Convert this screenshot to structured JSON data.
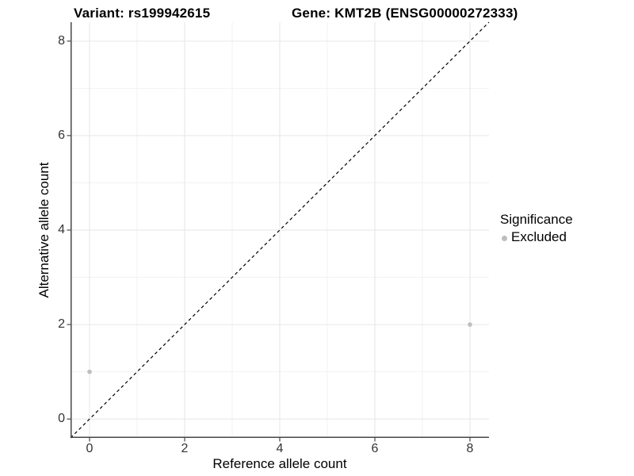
{
  "titles": {
    "variant": "Variant: rs199942615",
    "gene": "Gene: KMT2B (ENSG00000272333)"
  },
  "chart_data": {
    "type": "scatter",
    "xlabel": "Reference allele count",
    "ylabel": "Alternative allele count",
    "xlim": [
      -0.4,
      8.4
    ],
    "ylim": [
      -0.4,
      8.4
    ],
    "x_ticks": {
      "major": [
        0,
        2,
        4,
        6,
        8
      ],
      "minor": [
        1,
        3,
        5,
        7
      ]
    },
    "y_ticks": {
      "major": [
        0,
        2,
        4,
        6,
        8
      ],
      "minor": [
        1,
        3,
        5,
        7
      ]
    },
    "grid": "major+minor",
    "series": [
      {
        "name": "Excluded",
        "color": "#bebebe",
        "marker": "circle",
        "points": [
          {
            "x": 0,
            "y": 1
          },
          {
            "x": 8,
            "y": 2
          }
        ]
      }
    ],
    "reference_line": {
      "kind": "identity y=x",
      "style": "dashed",
      "color": "#000000",
      "from": [
        -0.4,
        -0.4
      ],
      "to": [
        8.4,
        8.4
      ]
    },
    "legend": {
      "title": "Significance",
      "position": "right",
      "items": [
        {
          "label": "Excluded",
          "color": "#bebebe"
        }
      ]
    }
  },
  "colors": {
    "background": "#ffffff",
    "grid_major": "#e6e6e6",
    "grid_minor": "#f2f2f2",
    "axis_line": "#474747",
    "tick_text": "#333333",
    "title_text": "#000000",
    "point": "#bebebe"
  }
}
